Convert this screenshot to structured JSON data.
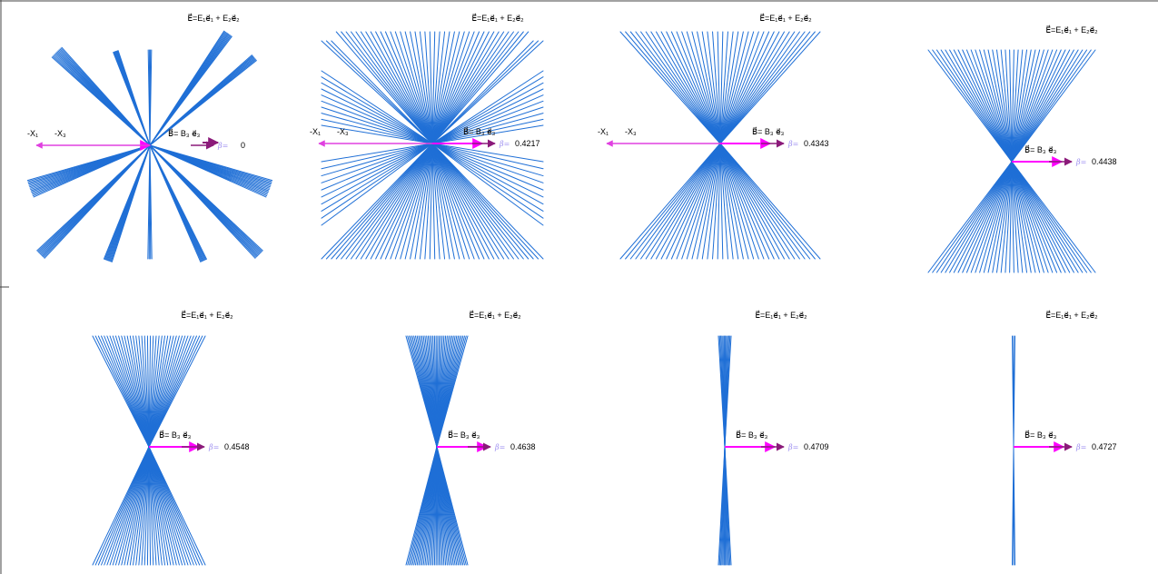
{
  "colors": {
    "rays": "#1f6fd6",
    "b_arrow": "#ff00ff",
    "x_arrow": "#e040e0",
    "dark_arrow": "#8b1a7a",
    "beta_label": "#9b8cf0"
  },
  "labels": {
    "e_field": "E⃗=E₁e⃗₁ + E₂e⃗₂",
    "b_field": "B⃗= B₃ e⃗₃",
    "neg_x1": "-X₁",
    "neg_x3": "-X₃",
    "beta": "β="
  },
  "panels": [
    {
      "beta": "0"
    },
    {
      "beta": "0.4217"
    },
    {
      "beta": "0.4343"
    },
    {
      "beta": "0.4438"
    },
    {
      "beta": "0.4548"
    },
    {
      "beta": "0.4638"
    },
    {
      "beta": "0.4709"
    },
    {
      "beta": "0.4727"
    }
  ]
}
